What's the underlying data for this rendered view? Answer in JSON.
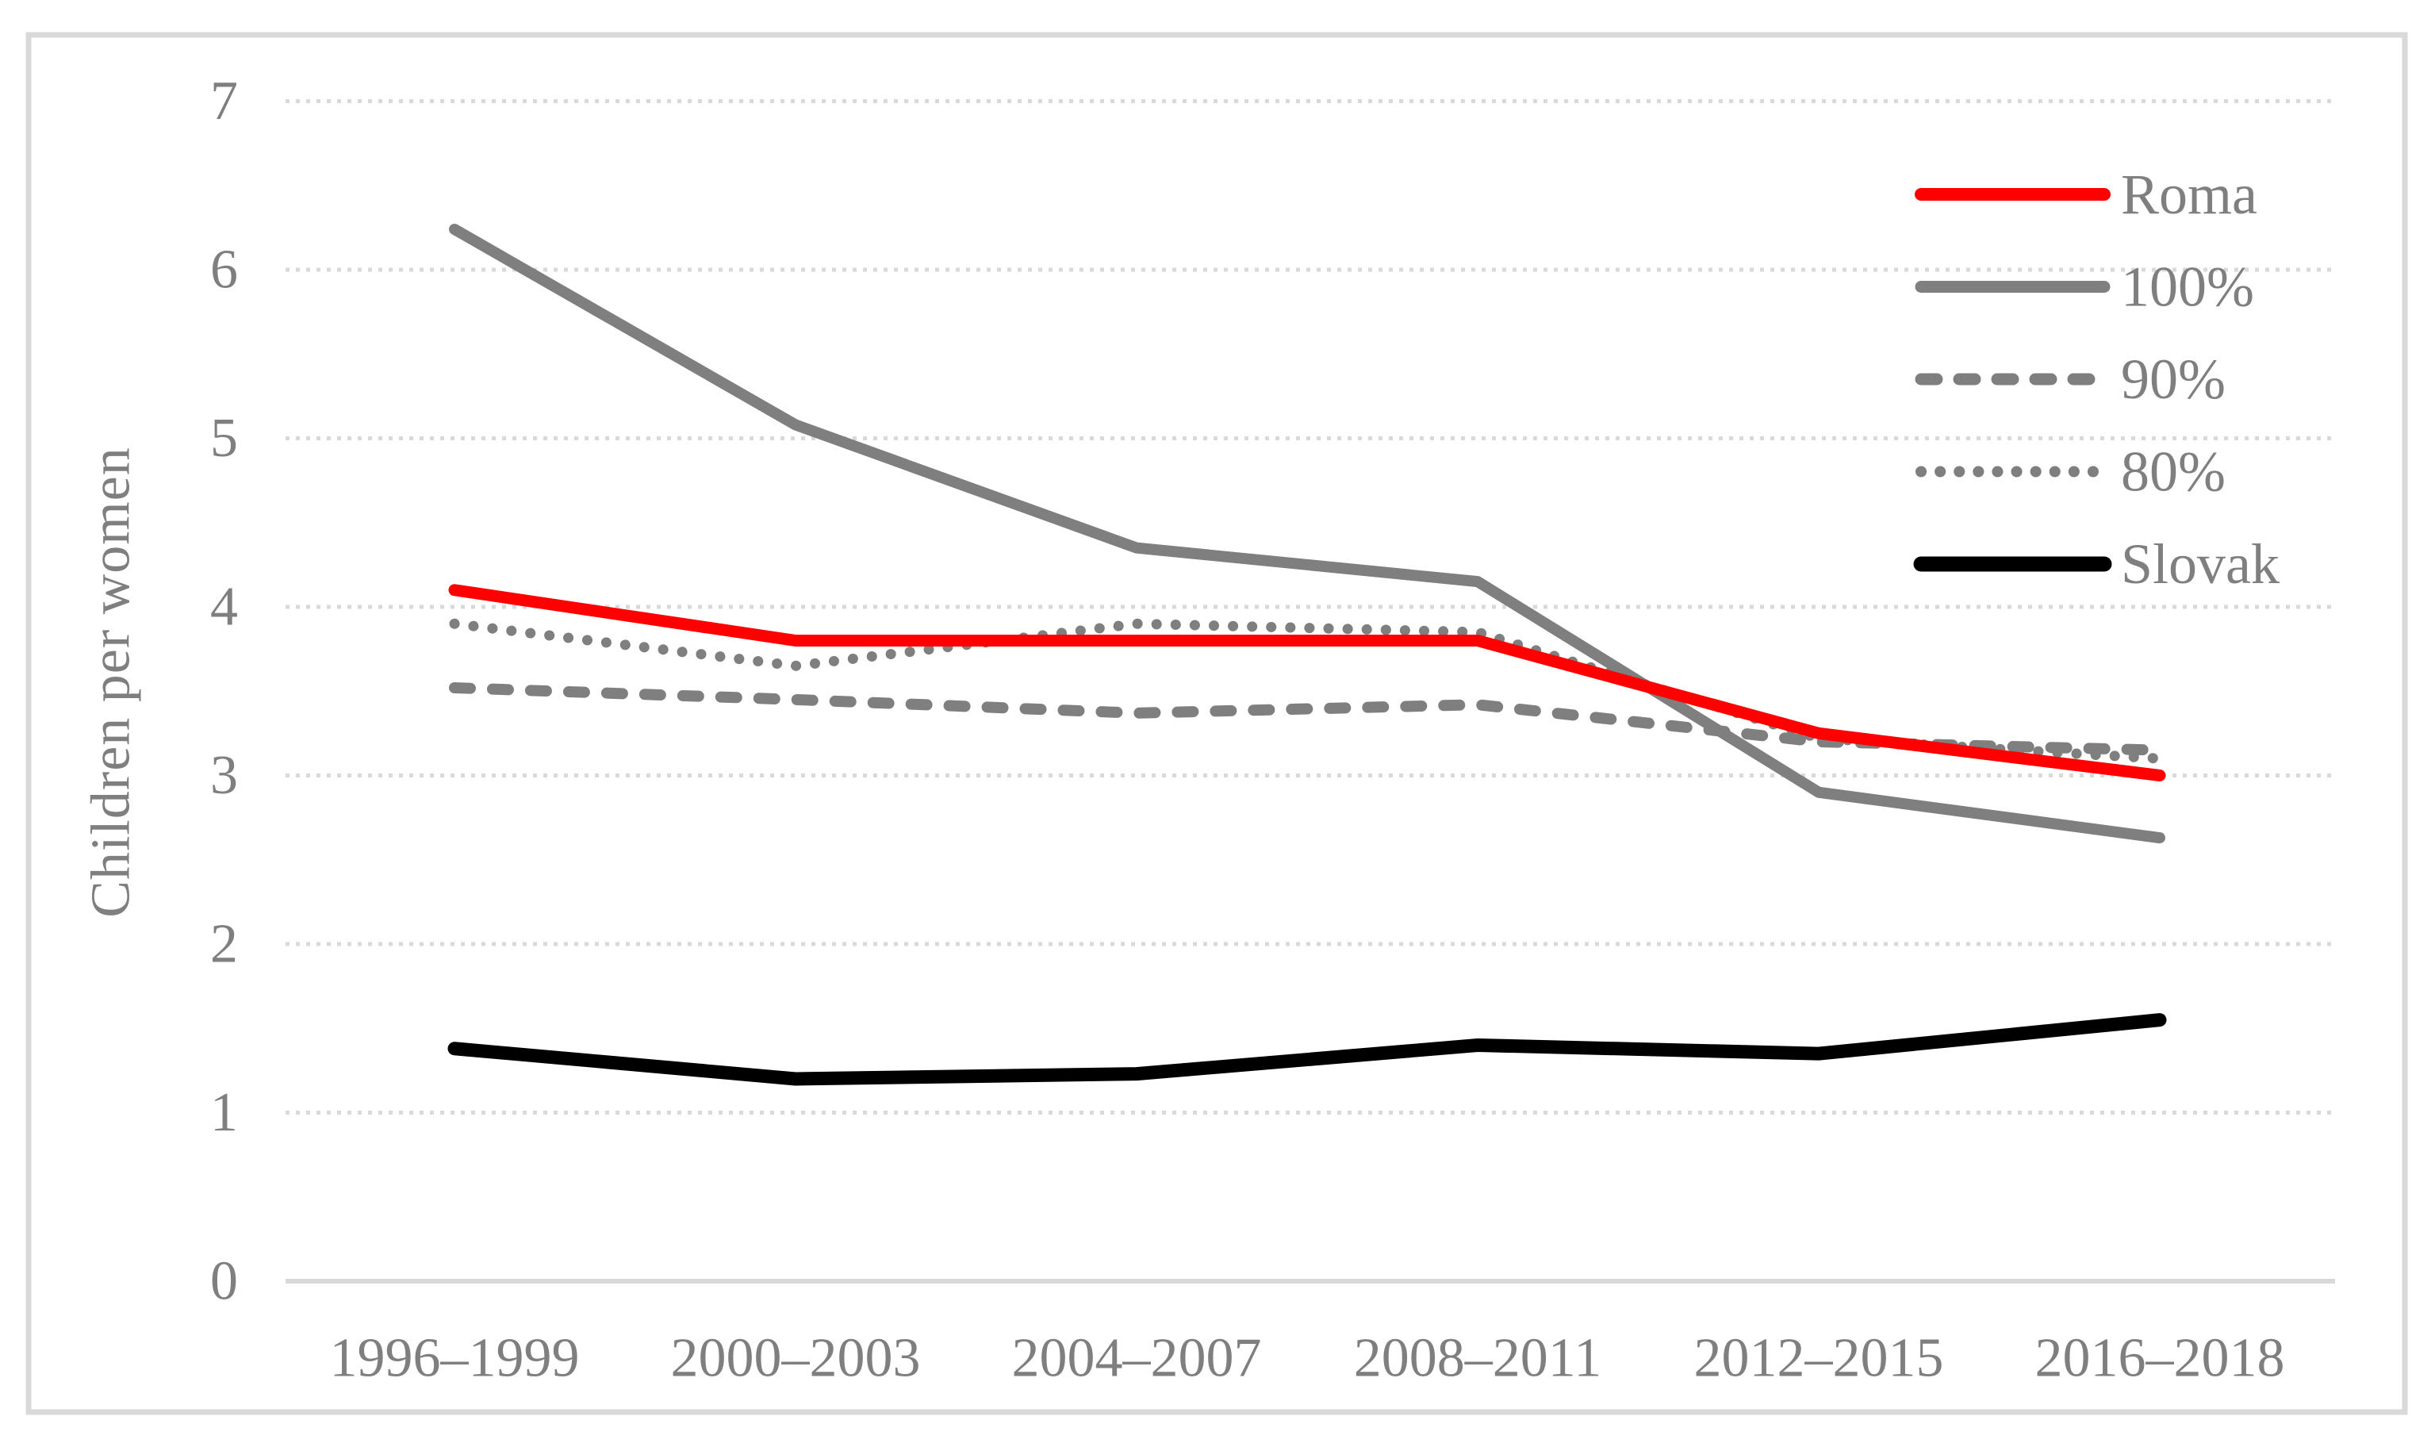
{
  "figure": {
    "type": "line-chart-figure",
    "background": "#ffffff",
    "border_color": "#d9d9d9"
  },
  "chart_data": {
    "type": "line",
    "title": "",
    "xlabel": "",
    "ylabel": "Children  per women",
    "ylim": [
      0,
      7
    ],
    "yticks": [
      "0",
      "1",
      "2",
      "3",
      "4",
      "5",
      "6",
      "7"
    ],
    "grid": "horizontal-dotted",
    "grid_color": "#d9d9d9",
    "axis_line_color": "#d9d9d9",
    "text_color": "#7f7f7f",
    "legend_position": "upper-right",
    "categories": [
      "1996–1999",
      "2000–2003",
      "2004–2007",
      "2008–2011",
      "2012–2015",
      "2016–2018"
    ],
    "series": [
      {
        "name": "Roma",
        "color": "#ff0000",
        "style": "solid",
        "values": [
          4.1,
          3.8,
          3.8,
          3.8,
          3.25,
          3.0
        ]
      },
      {
        "name": "100%",
        "color": "#7f7f7f",
        "style": "solid",
        "values": [
          6.24,
          5.08,
          4.35,
          4.15,
          2.9,
          2.63
        ]
      },
      {
        "name": "90%",
        "color": "#7f7f7f",
        "style": "dashed",
        "values": [
          3.52,
          3.45,
          3.37,
          3.42,
          3.2,
          3.15
        ]
      },
      {
        "name": "80%",
        "color": "#7f7f7f",
        "style": "dotted",
        "values": [
          3.9,
          3.65,
          3.9,
          3.85,
          3.22,
          3.1
        ]
      },
      {
        "name": "Slovak",
        "color": "#000000",
        "style": "solid",
        "values": [
          1.38,
          1.2,
          1.23,
          1.4,
          1.35,
          1.55
        ]
      }
    ]
  }
}
